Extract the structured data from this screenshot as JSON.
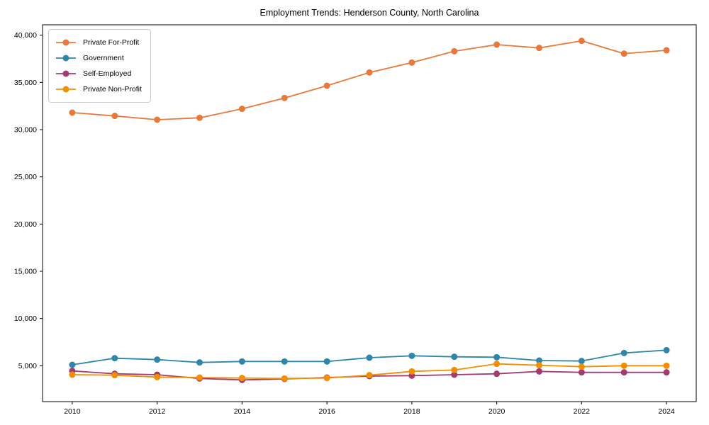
{
  "chart_data": {
    "type": "line",
    "title": "Employment Trends: Henderson County, North Carolina",
    "xlabel": "",
    "ylabel": "",
    "x": [
      2010,
      2011,
      2012,
      2013,
      2014,
      2015,
      2016,
      2017,
      2018,
      2019,
      2020,
      2021,
      2022,
      2023,
      2024
    ],
    "x_ticks": [
      2010,
      2012,
      2014,
      2016,
      2018,
      2020,
      2022,
      2024
    ],
    "x_tick_labels": [
      "2010",
      "2012",
      "2014",
      "2016",
      "2018",
      "2020",
      "2022",
      "2024"
    ],
    "y_ticks": [
      5000,
      10000,
      15000,
      20000,
      25000,
      30000,
      35000,
      40000
    ],
    "y_tick_labels": [
      "5,000",
      "10,000",
      "15,000",
      "20,000",
      "25,000",
      "30,000",
      "35,000",
      "40,000"
    ],
    "xlim": [
      2009.3,
      2024.7
    ],
    "ylim": [
      1200,
      41100
    ],
    "grid": false,
    "legend_position": "upper-left",
    "series": [
      {
        "name": "Private For-Profit",
        "color": "#E8793D",
        "values": [
          31800,
          31450,
          31050,
          31250,
          32200,
          33350,
          34650,
          36050,
          37100,
          38300,
          39000,
          38650,
          39400,
          38050,
          38400
        ]
      },
      {
        "name": "Government",
        "color": "#2E86AB",
        "values": [
          5100,
          5800,
          5650,
          5350,
          5450,
          5450,
          5450,
          5850,
          6050,
          5950,
          5900,
          5550,
          5500,
          6350,
          6650
        ]
      },
      {
        "name": "Self-Employed",
        "color": "#A23B72",
        "values": [
          4450,
          4150,
          4050,
          3650,
          3500,
          3600,
          3750,
          3900,
          3950,
          4050,
          4150,
          4400,
          4300,
          4300,
          4300
        ]
      },
      {
        "name": "Private Non-Profit",
        "color": "#F18F01",
        "values": [
          4050,
          4000,
          3800,
          3750,
          3700,
          3650,
          3700,
          4000,
          4400,
          4550,
          5200,
          5050,
          4900,
          5000,
          5000
        ]
      }
    ]
  }
}
